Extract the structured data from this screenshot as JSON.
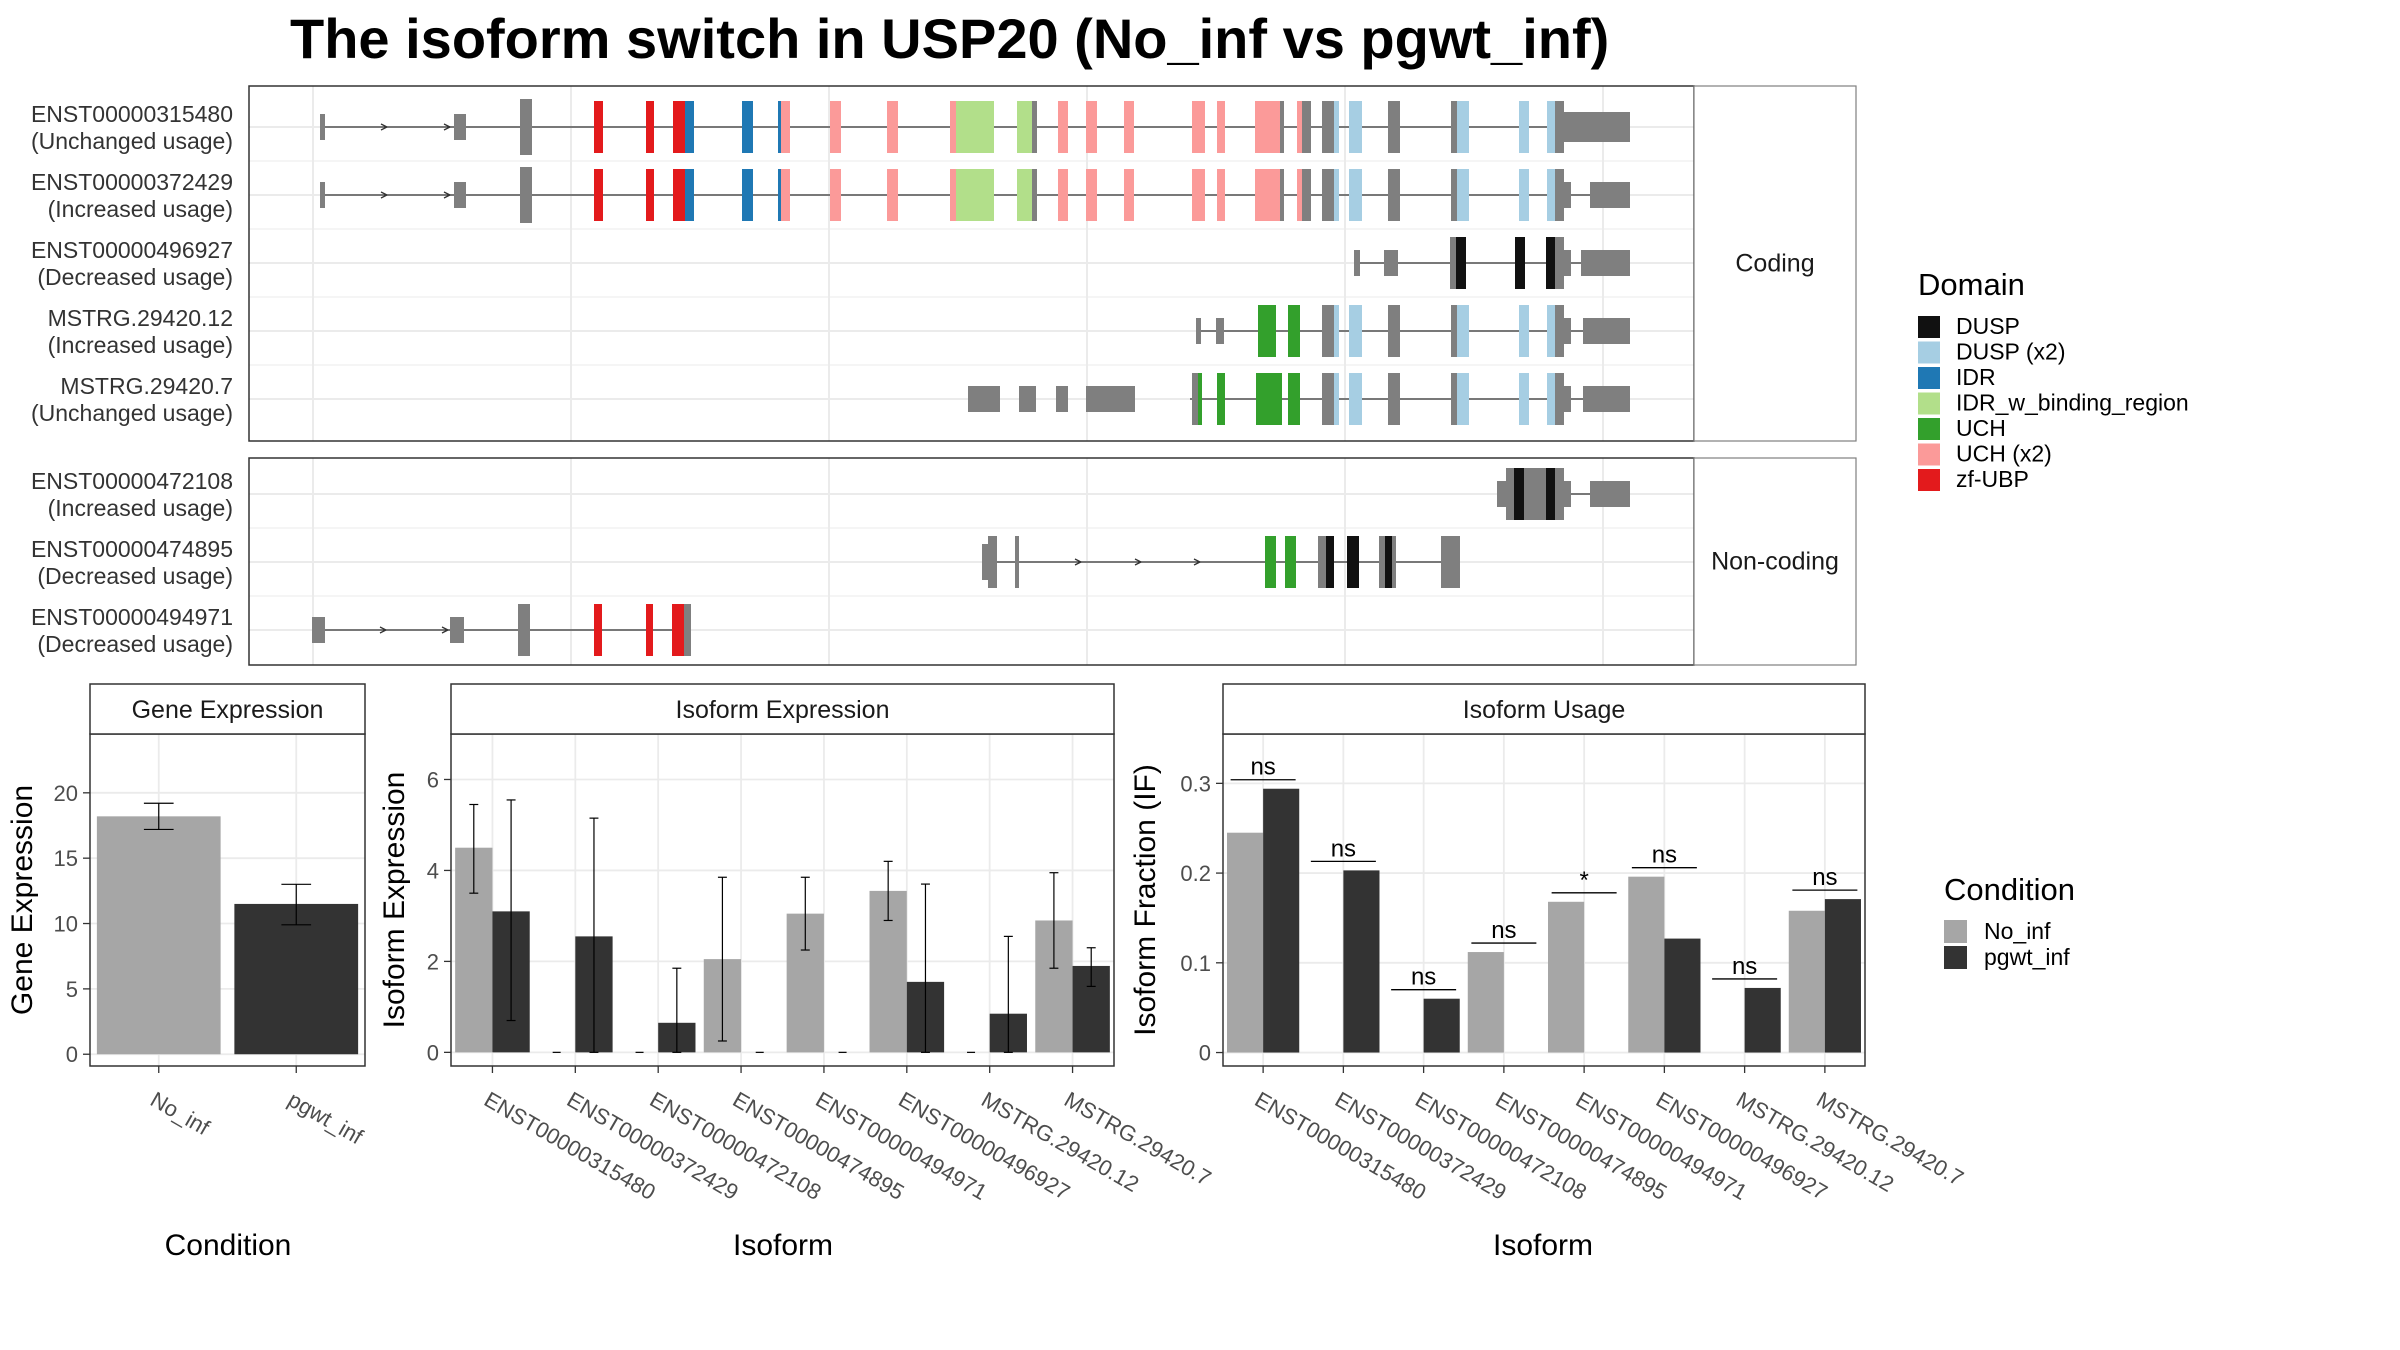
{
  "title": "The isoform switch in USP20 (No_inf vs pgwt_inf)",
  "structure": {
    "facets": [
      "Coding",
      "Non-coding"
    ],
    "domain_legend_title": "Domain",
    "domains": [
      {
        "name": "DUSP",
        "color": "#111111"
      },
      {
        "name": "DUSP (x2)",
        "color": "#a6cee3"
      },
      {
        "name": "IDR",
        "color": "#1f78b4"
      },
      {
        "name": "IDR_w_binding_region",
        "color": "#b2df8a"
      },
      {
        "name": "UCH",
        "color": "#33a02c"
      },
      {
        "name": "UCH (x2)",
        "color": "#fb9a99"
      },
      {
        "name": "zf-UBP",
        "color": "#e31a1c"
      }
    ],
    "transcripts": [
      {
        "id": "ENST00000315480",
        "usage": "(Unchanged usage)",
        "facet": 0
      },
      {
        "id": "ENST00000372429",
        "usage": "(Increased usage)",
        "facet": 0
      },
      {
        "id": "ENST00000496927",
        "usage": "(Decreased usage)",
        "facet": 0
      },
      {
        "id": "MSTRG.29420.12",
        "usage": "(Increased usage)",
        "facet": 0
      },
      {
        "id": "MSTRG.29420.7",
        "usage": "(Unchanged usage)",
        "facet": 0
      },
      {
        "id": "ENST00000472108",
        "usage": "(Increased usage)",
        "facet": 1
      },
      {
        "id": "ENST00000474895",
        "usage": "(Decreased usage)",
        "facet": 1
      },
      {
        "id": "ENST00000494971",
        "usage": "(Decreased usage)",
        "facet": 1
      }
    ]
  },
  "condition_legend": {
    "title": "Condition",
    "items": [
      {
        "name": "No_inf",
        "color": "#a6a6a6"
      },
      {
        "name": "pgwt_inf",
        "color": "#333333"
      }
    ]
  },
  "chart_data": [
    {
      "type": "bar",
      "title": "Gene Expression",
      "xlabel": "Condition",
      "ylabel": "Gene Expression",
      "categories": [
        "No_inf",
        "pgwt_inf"
      ],
      "values": [
        18.2,
        11.5
      ],
      "err_low": [
        17.2,
        9.9
      ],
      "err_high": [
        19.2,
        13.0
      ],
      "ylim": [
        -0.9,
        24.5
      ],
      "yticks": [
        0,
        5,
        10,
        15,
        20
      ]
    },
    {
      "type": "bar",
      "title": "Isoform Expression",
      "xlabel": "Isoform",
      "ylabel": "Isoform Expression",
      "categories": [
        "ENST00000315480",
        "ENST00000372429",
        "ENST00000472108",
        "ENST00000474895",
        "ENST00000494971",
        "ENST00000496927",
        "MSTRG.29420.12",
        "MSTRG.29420.7"
      ],
      "series": [
        {
          "name": "No_inf",
          "values": [
            4.5,
            0.0,
            0.0,
            2.05,
            3.05,
            3.55,
            0.0,
            2.9
          ],
          "err_low": [
            3.5,
            null,
            null,
            0.25,
            2.25,
            2.9,
            null,
            1.85
          ],
          "err_high": [
            5.45,
            null,
            null,
            3.85,
            3.85,
            4.2,
            null,
            3.95
          ]
        },
        {
          "name": "pgwt_inf",
          "values": [
            3.1,
            2.55,
            0.65,
            0.0,
            0.0,
            1.55,
            0.85,
            1.9
          ],
          "err_low": [
            0.7,
            0.0,
            0.0,
            null,
            null,
            0.0,
            0.0,
            1.45
          ],
          "err_high": [
            5.55,
            5.15,
            1.85,
            null,
            null,
            3.7,
            2.55,
            2.3
          ]
        }
      ],
      "ylim": [
        -0.3,
        7.0
      ],
      "yticks": [
        0,
        2,
        4,
        6
      ]
    },
    {
      "type": "bar",
      "title": "Isoform Usage",
      "xlabel": "Isoform",
      "ylabel": "Isoform Fraction (IF)",
      "categories": [
        "ENST00000315480",
        "ENST00000372429",
        "ENST00000472108",
        "ENST00000474895",
        "ENST00000494971",
        "ENST00000496927",
        "MSTRG.29420.12",
        "MSTRG.29420.7"
      ],
      "series": [
        {
          "name": "No_inf",
          "values": [
            0.245,
            0.0,
            0.0,
            0.112,
            0.168,
            0.196,
            0.0,
            0.158
          ]
        },
        {
          "name": "pgwt_inf",
          "values": [
            0.294,
            0.203,
            0.06,
            0.0,
            0.0,
            0.127,
            0.072,
            0.171
          ]
        }
      ],
      "significance": [
        "ns",
        "ns",
        "ns",
        "ns",
        "*",
        "ns",
        "ns",
        "ns"
      ],
      "ylim": [
        -0.015,
        0.355
      ],
      "yticks": [
        0.0,
        0.1,
        0.2,
        0.3
      ]
    }
  ]
}
